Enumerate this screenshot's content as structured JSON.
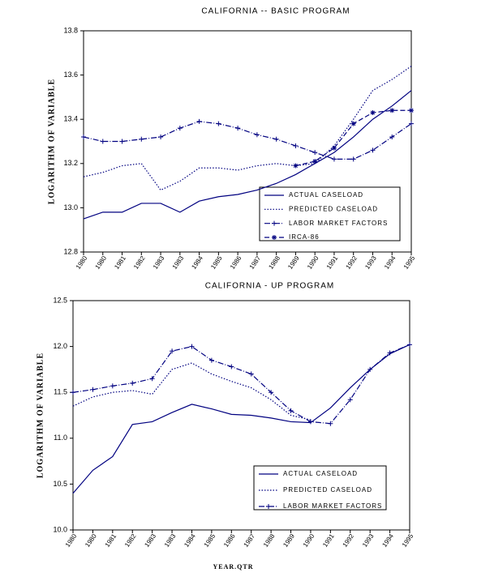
{
  "chart_data": [
    {
      "type": "line",
      "title": "CALIFORNIA  --  BASIC PROGRAM",
      "y_label": "LOGARITHM OF VARIABLE",
      "categories": [
        "1980",
        "1980",
        "1981",
        "1982",
        "1983",
        "1983",
        "1984",
        "1985",
        "1986",
        "1987",
        "1988",
        "1989",
        "1990",
        "1991",
        "1992",
        "1993",
        "1994",
        "1995"
      ],
      "ylim": [
        12.8,
        13.8
      ],
      "yticks": [
        12.8,
        {
          "value": 13,
          "label": "13.0"
        },
        13.2,
        13.4,
        13.6,
        13.8
      ],
      "legend": "lower right",
      "series": [
        {
          "name": "ACTUAL CASELOAD",
          "color": "#000080",
          "style": "solid",
          "marker": "none",
          "values": [
            12.95,
            12.98,
            12.98,
            13.02,
            13.02,
            12.98,
            13.03,
            13.05,
            13.06,
            13.08,
            13.11,
            13.15,
            13.2,
            13.25,
            13.32,
            13.4,
            13.46,
            13.53
          ]
        },
        {
          "name": "PREDICTED CASELOAD",
          "color": "#000080",
          "style": "dotted",
          "marker": "none",
          "values": [
            13.14,
            13.16,
            13.19,
            13.2,
            13.08,
            13.12,
            13.18,
            13.18,
            13.17,
            13.19,
            13.2,
            13.19,
            13.2,
            13.28,
            13.4,
            13.53,
            13.58,
            13.64
          ]
        },
        {
          "name": "LABOR MARKET FACTORS",
          "color": "#000080",
          "style": "dashdot",
          "marker": "plus",
          "values": [
            13.32,
            13.3,
            13.3,
            13.31,
            13.32,
            13.36,
            13.39,
            13.38,
            13.36,
            13.33,
            13.31,
            13.28,
            13.25,
            13.22,
            13.22,
            13.26,
            13.32,
            13.38
          ]
        },
        {
          "name": "IRCA-86",
          "color": "#000080",
          "style": "dashed",
          "marker": "star",
          "values": [
            null,
            null,
            null,
            null,
            null,
            null,
            null,
            null,
            null,
            null,
            null,
            13.19,
            13.21,
            13.27,
            13.38,
            13.43,
            13.44,
            13.44
          ]
        }
      ]
    },
    {
      "type": "line",
      "title": "CALIFORNIA  -  UP PROGRAM",
      "y_label": "LOGARITHM OF VARIABLE",
      "x_label": "YEAR.QTR",
      "categories": [
        "1980",
        "1980",
        "1981",
        "1982",
        "1983",
        "1983",
        "1984",
        "1985",
        "1986",
        "1987",
        "1988",
        "1989",
        "1990",
        "1991",
        "1992",
        "1993",
        "1994",
        "1995"
      ],
      "ylim": [
        10,
        12.5
      ],
      "yticks": [
        {
          "value": 10,
          "label": "10.0"
        },
        10.5,
        {
          "value": 11,
          "label": "11.0"
        },
        11.5,
        {
          "value": 12,
          "label": "12.0"
        },
        12.5
      ],
      "legend": "lower right",
      "series": [
        {
          "name": "ACTUAL CASELOAD",
          "color": "#000080",
          "style": "solid",
          "marker": "none",
          "values": [
            10.4,
            10.65,
            10.8,
            11.15,
            11.18,
            11.28,
            11.37,
            11.32,
            11.26,
            11.25,
            11.22,
            11.18,
            11.17,
            11.33,
            11.55,
            11.75,
            11.92,
            12.02
          ]
        },
        {
          "name": "PREDICTED CASELOAD",
          "color": "#000080",
          "style": "dotted",
          "marker": "none",
          "values": [
            11.35,
            11.45,
            11.5,
            11.52,
            11.48,
            11.75,
            11.82,
            11.7,
            11.62,
            11.55,
            11.42,
            11.25,
            11.2,
            null,
            null,
            null,
            null,
            null
          ]
        },
        {
          "name": "LABOR MARKET FACTORS",
          "color": "#000080",
          "style": "dashdot",
          "marker": "plus",
          "values": [
            11.5,
            11.53,
            11.57,
            11.6,
            11.65,
            11.95,
            12.0,
            11.85,
            11.78,
            11.7,
            11.5,
            11.3,
            11.18,
            11.16,
            11.42,
            11.75,
            11.93,
            12.02
          ]
        }
      ]
    }
  ]
}
